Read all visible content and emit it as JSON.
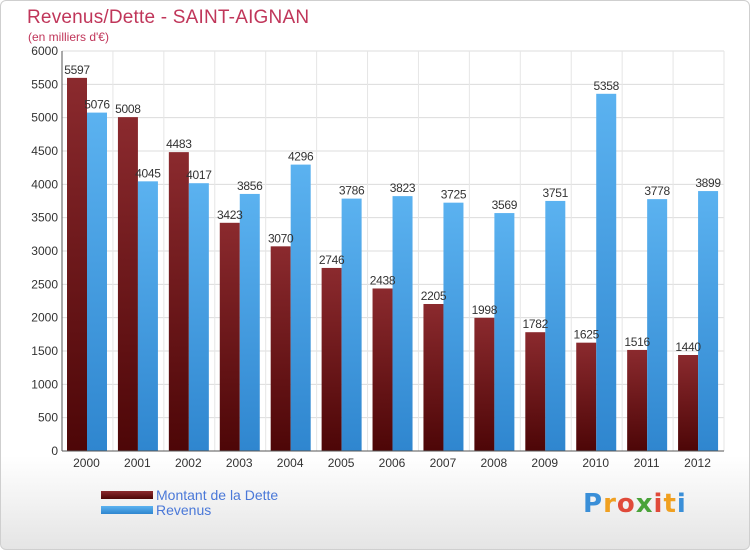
{
  "header": {
    "title": "Revenus/Dette - SAINT-AIGNAN",
    "subtitle": "(en milliers d'€)"
  },
  "legend": {
    "items": [
      {
        "label": "Montant de la Dette",
        "color": "#7a1418"
      },
      {
        "label": "Revenus",
        "color": "#4aa3e8"
      }
    ]
  },
  "logo": {
    "text": "Proxiti"
  },
  "chart_data": {
    "type": "bar",
    "categories": [
      "2000",
      "2001",
      "2002",
      "2003",
      "2004",
      "2005",
      "2006",
      "2007",
      "2008",
      "2009",
      "2010",
      "2011",
      "2012"
    ],
    "series": [
      {
        "name": "Montant de la Dette",
        "values": [
          5597,
          5008,
          4483,
          3423,
          3070,
          2746,
          2438,
          2205,
          1998,
          1782,
          1625,
          1516,
          1440
        ],
        "color": "#7a1418"
      },
      {
        "name": "Revenus",
        "values": [
          5076,
          4045,
          4017,
          3856,
          4296,
          3786,
          3823,
          3725,
          3569,
          3751,
          5358,
          3778,
          3899
        ],
        "color": "#4aa3e8"
      }
    ],
    "title": "Revenus/Dette - SAINT-AIGNAN",
    "ylabel": "(en milliers d'€)",
    "ylim": [
      0,
      6000
    ],
    "yticks": [
      0,
      500,
      1000,
      1500,
      2000,
      2500,
      3000,
      3500,
      4000,
      4500,
      5000,
      5500,
      6000
    ],
    "grid": true
  }
}
